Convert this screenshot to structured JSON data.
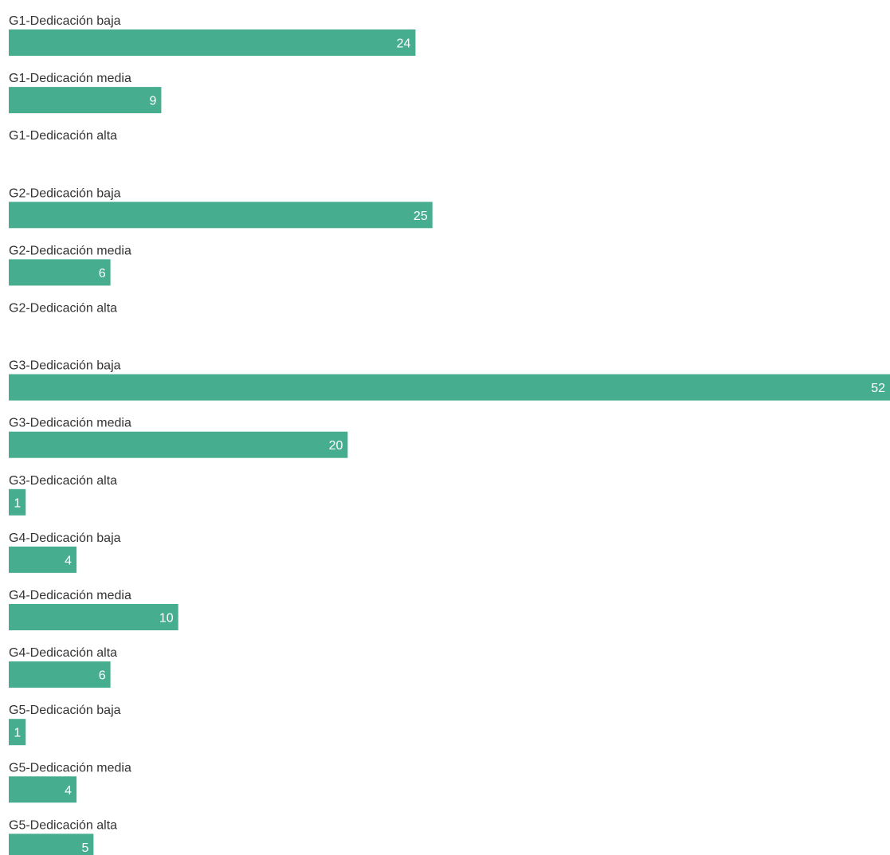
{
  "chart_data": {
    "type": "bar",
    "orientation": "horizontal",
    "categories": [
      "G1-Dedicación baja",
      "G1-Dedicación media",
      "G1-Dedicación alta",
      "G2-Dedicación baja",
      "G2-Dedicación media",
      "G2-Dedicación alta",
      "G3-Dedicación baja",
      "G3-Dedicación media",
      "G3-Dedicación alta",
      "G4-Dedicación baja",
      "G4-Dedicación media",
      "G4-Dedicación alta",
      "G5-Dedicación baja",
      "G5-Dedicación media",
      "G5-Dedicación alta"
    ],
    "values": [
      24,
      9,
      null,
      25,
      6,
      null,
      52,
      20,
      1,
      4,
      10,
      6,
      1,
      4,
      5
    ],
    "xlim": [
      0,
      52
    ],
    "grid": false,
    "legend": "none",
    "bar_color": "#47ad8f",
    "label_color": "#333333",
    "value_label_color": "#ffffff"
  }
}
